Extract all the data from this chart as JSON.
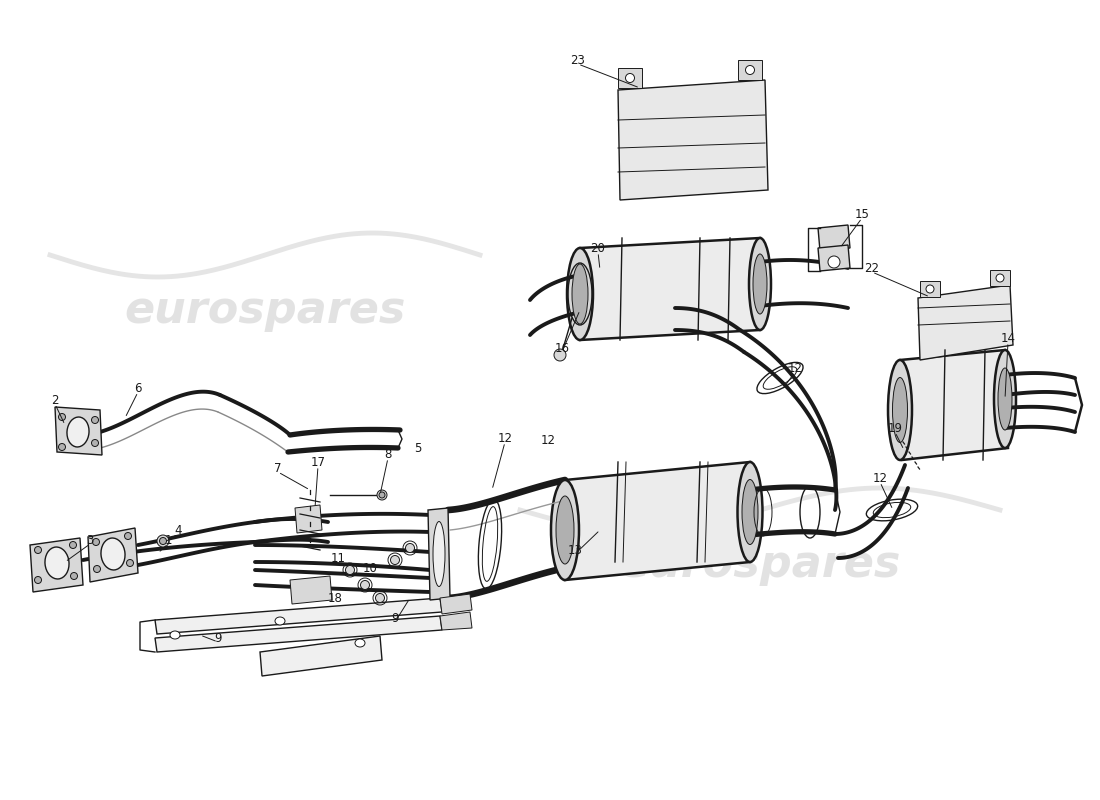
{
  "bg_color": "#ffffff",
  "line_color": "#1a1a1a",
  "fill_light": "#f0f0f0",
  "fill_mid": "#d8d8d8",
  "fill_dark": "#b0b0b0",
  "wm_color": "#d0d0d0",
  "wm_alpha": 0.55,
  "lw_heavy": 2.8,
  "lw_med": 1.8,
  "lw_light": 1.0,
  "lw_thin": 0.7,
  "label_fs": 8.5
}
